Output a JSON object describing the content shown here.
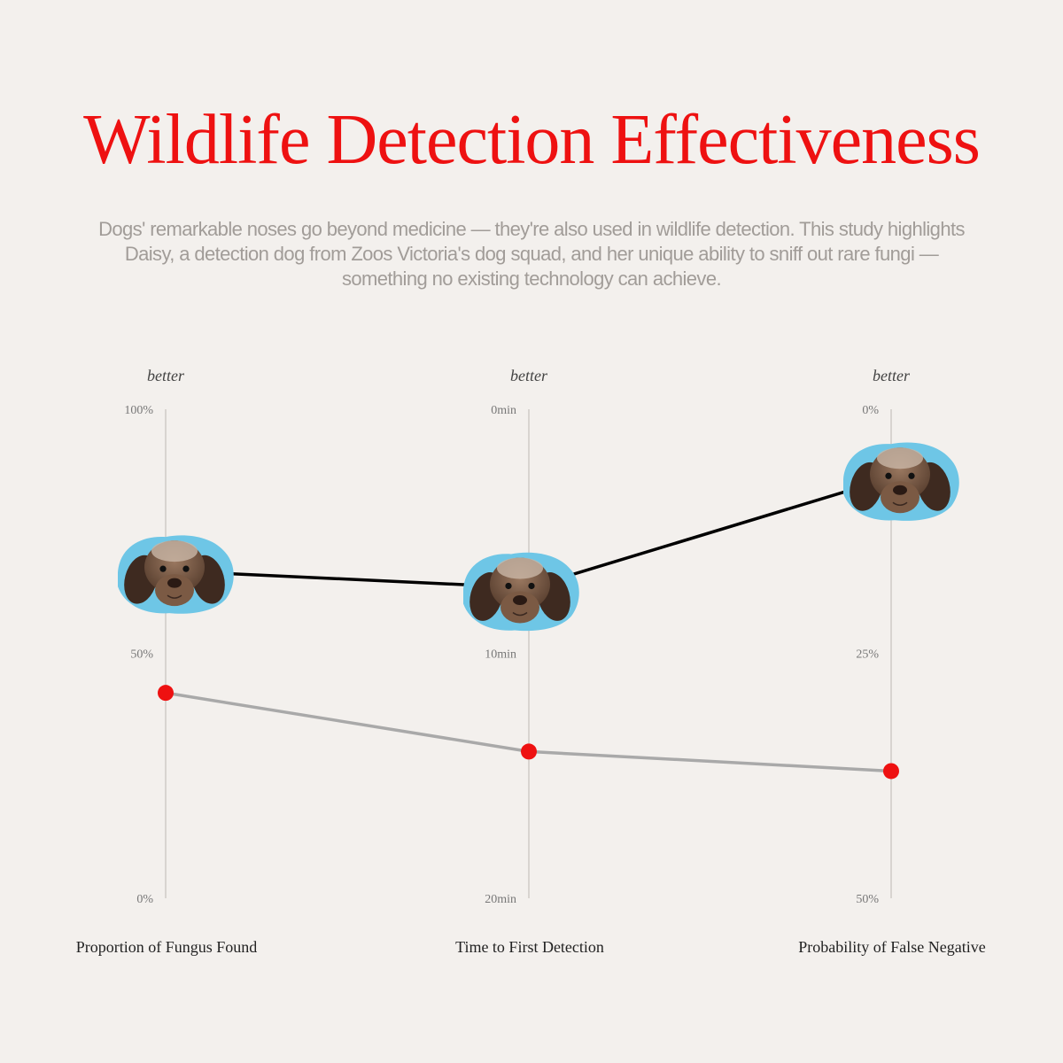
{
  "title": "Wildlife Detection Effectiveness",
  "subtitle": "Dogs' remarkable noses go beyond medicine — they're also used in wildlife detection. This study highlights Daisy, a detection dog from Zoos Victoria's dog squad, and her unique ability to sniff out rare fungi — something no existing technology can achieve.",
  "chart_data": {
    "type": "line",
    "direction_label": "better",
    "axes": [
      {
        "name": "Proportion of Fungus Found",
        "ticks": [
          "100%",
          "50%",
          "0%"
        ],
        "range": [
          100,
          0
        ],
        "unit": "%"
      },
      {
        "name": "Time to First Detection",
        "ticks": [
          "0min",
          "10min",
          "20min"
        ],
        "range": [
          0,
          20
        ],
        "unit": "min"
      },
      {
        "name": "Probability of False Negative",
        "ticks": [
          "0%",
          "25%",
          "50%"
        ],
        "range": [
          0,
          50
        ],
        "unit": "%"
      }
    ],
    "series": [
      {
        "values": [
          67,
          7.3,
          7.0
        ],
        "color": "#000000",
        "marker": "dog-face-icon"
      },
      {
        "values": [
          42,
          14,
          37
        ],
        "color": "#a9a9a9",
        "marker_color": "#ee1111"
      }
    ]
  }
}
